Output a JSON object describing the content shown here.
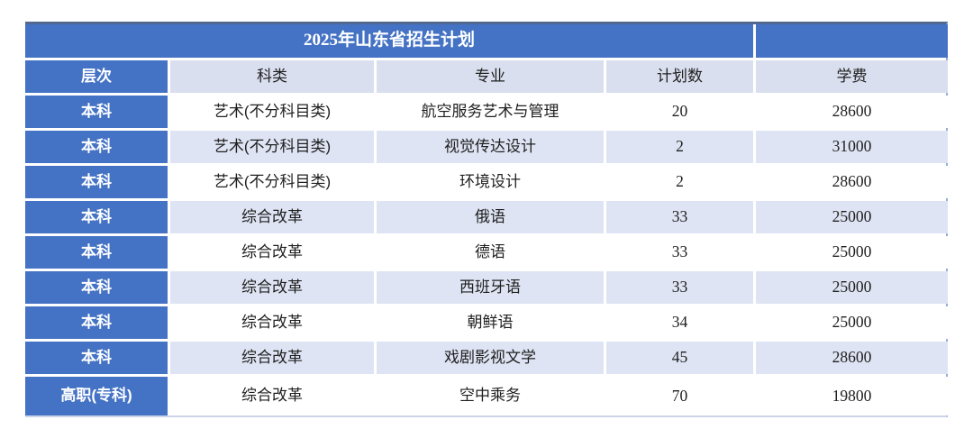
{
  "table": {
    "title": "2025年山东省招生计划",
    "columns": [
      "层次",
      "科类",
      "专业",
      "计划数",
      "学费"
    ],
    "rows": [
      [
        "本科",
        "艺术(不分科目类)",
        "航空服务艺术与管理",
        "20",
        "28600"
      ],
      [
        "本科",
        "艺术(不分科目类)",
        "视觉传达设计",
        "2",
        "31000"
      ],
      [
        "本科",
        "艺术(不分科目类)",
        "环境设计",
        "2",
        "28600"
      ],
      [
        "本科",
        "综合改革",
        "俄语",
        "33",
        "25000"
      ],
      [
        "本科",
        "综合改革",
        "德语",
        "33",
        "25000"
      ],
      [
        "本科",
        "综合改革",
        "西班牙语",
        "33",
        "25000"
      ],
      [
        "本科",
        "综合改革",
        "朝鲜语",
        "34",
        "25000"
      ],
      [
        "本科",
        "综合改革",
        "戏剧影视文学",
        "45",
        "28600"
      ],
      [
        "高职(专科)",
        "综合改革",
        "空中乘务",
        "70",
        "19800"
      ]
    ]
  },
  "colors": {
    "header_blue": "#4472c4",
    "header_light": "#d9dfee",
    "light_row": "#dee4f3",
    "white_row": "#ffffff",
    "text_dark": "#1f1f1f",
    "text_white": "#ffffff",
    "border_top": "#53688e",
    "border_right": "#93abd8"
  }
}
